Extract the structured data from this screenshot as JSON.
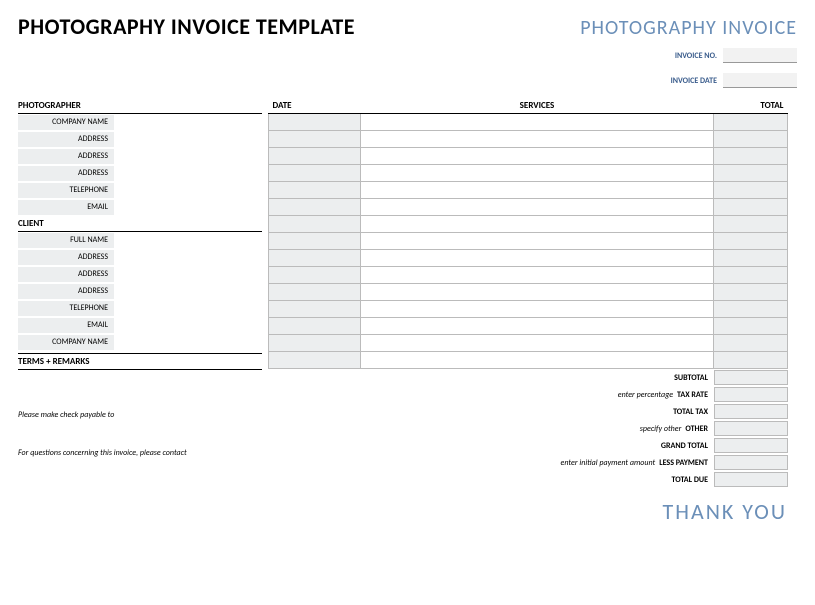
{
  "header": {
    "title_left": "PHOTOGRAPHY INVOICE TEMPLATE",
    "title_right": "PHOTOGRAPHY INVOICE"
  },
  "meta": {
    "invoice_no_label": "INVOICE NO.",
    "invoice_date_label": "INVOICE DATE"
  },
  "photographer": {
    "heading": "PHOTOGRAPHER",
    "fields": [
      "COMPANY NAME",
      "ADDRESS",
      "ADDRESS",
      "ADDRESS",
      "TELEPHONE",
      "EMAIL"
    ]
  },
  "client": {
    "heading": "CLIENT",
    "fields": [
      "FULL NAME",
      "ADDRESS",
      "ADDRESS",
      "ADDRESS",
      "TELEPHONE",
      "EMAIL",
      "COMPANY NAME"
    ]
  },
  "terms_heading": "TERMS + REMARKS",
  "table": {
    "headers": {
      "date": "DATE",
      "services": "SERVICES",
      "total": "TOTAL"
    },
    "row_count": 15
  },
  "totals": [
    {
      "hint": "",
      "label": "SUBTOTAL"
    },
    {
      "hint": "enter percentage",
      "label": "TAX RATE"
    },
    {
      "hint": "",
      "label": "TOTAL TAX"
    },
    {
      "hint": "specify other",
      "label": "OTHER"
    },
    {
      "hint": "",
      "label": "GRAND TOTAL"
    },
    {
      "hint": "enter initial payment amount",
      "label": "LESS PAYMENT"
    },
    {
      "hint": "",
      "label": "TOTAL DUE"
    }
  ],
  "notes": {
    "payable": "Please make check payable to",
    "questions": "For questions concerning this invoice, please contact"
  },
  "thank_you": "THANK YOU",
  "colors": {
    "accent": "#6b8fb8",
    "shade": "#eceeef",
    "border": "#bbbbbb"
  }
}
